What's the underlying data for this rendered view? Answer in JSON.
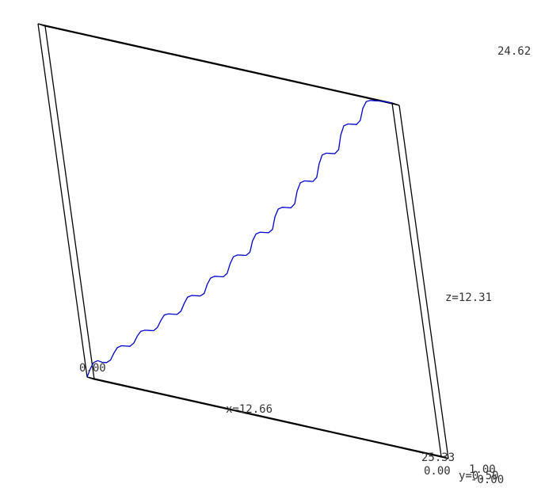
{
  "chart_data": {
    "type": "line",
    "title": "",
    "x_range": [
      0,
      25.33
    ],
    "y_range": [
      0,
      1
    ],
    "z_range": [
      0,
      24.62
    ],
    "grid": false,
    "labels": {
      "origin": "0.00",
      "x_max": "25.33",
      "z_max": "24.62",
      "x_mid": "x=12.66",
      "z_mid": "z=12.31",
      "y_min": "0.00",
      "y_max": "1.00",
      "y_mid": "y=0.50",
      "y_neg": "-0.00"
    },
    "series": [
      {
        "color": "#0000cc",
        "x": [
          0,
          0.32,
          0.63,
          0.95,
          1.27,
          1.58,
          1.9,
          2.22,
          2.53,
          2.85,
          3.17,
          3.48,
          3.8,
          4.12,
          4.43,
          4.75,
          5.07,
          5.38,
          5.7,
          6.02,
          6.33,
          6.65,
          6.97,
          7.28,
          7.6,
          7.92,
          8.23,
          8.55,
          8.87,
          9.18,
          9.5,
          9.82,
          10.13,
          10.45,
          10.77,
          11.08,
          11.4,
          11.72,
          12.03,
          12.35,
          12.66,
          12.98,
          13.3,
          13.61,
          13.93,
          14.25,
          14.56,
          14.88,
          15.2,
          15.51,
          15.83,
          16.15,
          16.46,
          16.78,
          17.1,
          17.41,
          17.73,
          18.05,
          18.36,
          18.68,
          19.0,
          19.31,
          19.63,
          19.95,
          20.26,
          20.58,
          20.9,
          21.21,
          21.53,
          21.85,
          22.16,
          22.48,
          22.8,
          23.11,
          23.43,
          23.75,
          24.06,
          24.38,
          24.7,
          25.01,
          25.33
        ],
        "y": [
          0,
          0,
          0,
          0,
          0,
          0,
          0,
          0,
          0,
          0,
          0,
          0,
          0,
          0,
          0,
          0,
          0,
          0,
          0,
          0,
          0,
          0,
          0,
          0,
          0,
          0,
          0,
          0,
          0,
          0,
          0,
          0,
          0,
          0,
          0,
          0,
          0,
          0,
          0,
          0,
          0,
          0,
          0,
          0,
          0,
          0,
          0,
          0,
          0,
          0,
          0,
          0,
          0,
          0,
          0,
          0,
          0,
          0,
          0,
          0,
          0,
          0,
          0,
          0,
          0,
          0,
          0,
          0,
          0,
          0,
          0,
          0,
          0,
          0,
          0,
          0,
          0,
          0,
          0,
          0,
          0
        ],
        "z": [
          0,
          0.65,
          1.15,
          1.35,
          1.3,
          1.35,
          1.6,
          2.15,
          2.6,
          2.8,
          2.85,
          2.9,
          3.2,
          3.75,
          4.15,
          4.3,
          4.35,
          4.4,
          4.7,
          5.25,
          5.7,
          5.85,
          5.9,
          5.95,
          6.25,
          6.85,
          7.35,
          7.55,
          7.6,
          7.65,
          7.9,
          8.6,
          9.1,
          9.3,
          9.35,
          9.4,
          9.7,
          10.45,
          11.0,
          11.2,
          11.25,
          11.3,
          11.6,
          12.45,
          13.0,
          13.2,
          13.25,
          13.3,
          13.6,
          14.55,
          15.15,
          15.35,
          15.4,
          15.45,
          15.8,
          16.75,
          17.4,
          17.6,
          17.65,
          17.7,
          18.05,
          19.05,
          19.75,
          19.95,
          20.0,
          20.05,
          20.4,
          21.5,
          22.2,
          22.4,
          22.45,
          22.5,
          22.85,
          23.75,
          24.3,
          24.45,
          24.5,
          24.55,
          24.58,
          24.6,
          24.62
        ]
      }
    ]
  }
}
